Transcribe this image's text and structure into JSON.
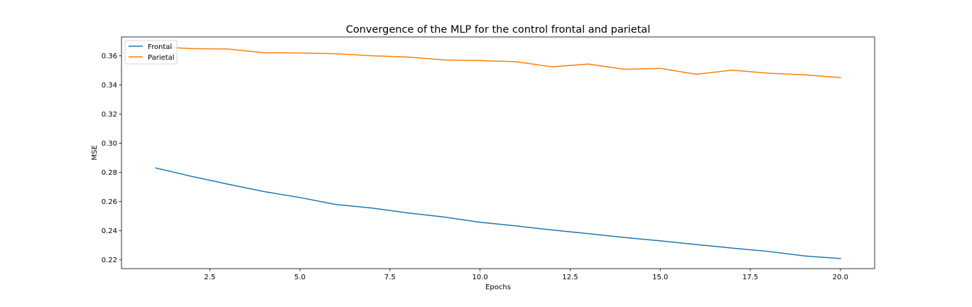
{
  "chart_data": {
    "type": "line",
    "title": "Convergence of the MLP for the control frontal and parietal",
    "xlabel": "Epochs",
    "ylabel": "MSE",
    "xlim": [
      0.05,
      20.95
    ],
    "ylim": [
      0.214,
      0.373
    ],
    "xticks": [
      2.5,
      5.0,
      7.5,
      10.0,
      12.5,
      15.0,
      17.5,
      20.0
    ],
    "xtick_labels": [
      "2.5",
      "5.0",
      "7.5",
      "10.0",
      "12.5",
      "15.0",
      "17.5",
      "20.0"
    ],
    "yticks": [
      0.22,
      0.24,
      0.26,
      0.28,
      0.3,
      0.32,
      0.34,
      0.36
    ],
    "ytick_labels": [
      "0.22",
      "0.24",
      "0.26",
      "0.28",
      "0.30",
      "0.32",
      "0.34",
      "0.36"
    ],
    "grid": false,
    "legend_position": "top-left",
    "x": [
      1,
      2,
      3,
      4,
      5,
      6,
      7,
      8,
      9,
      10,
      11,
      12,
      13,
      14,
      15,
      16,
      17,
      18,
      19,
      20
    ],
    "series": [
      {
        "name": "Frontal",
        "color": "#1f77b4",
        "values": [
          0.2831,
          0.2773,
          0.272,
          0.2669,
          0.2628,
          0.258,
          0.2556,
          0.2522,
          0.2494,
          0.2458,
          0.2433,
          0.2405,
          0.238,
          0.2354,
          0.2331,
          0.2305,
          0.2281,
          0.2258,
          0.2227,
          0.2209
        ]
      },
      {
        "name": "Parietal",
        "color": "#ff7f0e",
        "values": [
          0.3662,
          0.365,
          0.3647,
          0.3622,
          0.362,
          0.3615,
          0.3601,
          0.3592,
          0.3572,
          0.3568,
          0.356,
          0.3525,
          0.3544,
          0.3508,
          0.3514,
          0.3474,
          0.3502,
          0.3481,
          0.347,
          0.3451
        ]
      }
    ]
  }
}
